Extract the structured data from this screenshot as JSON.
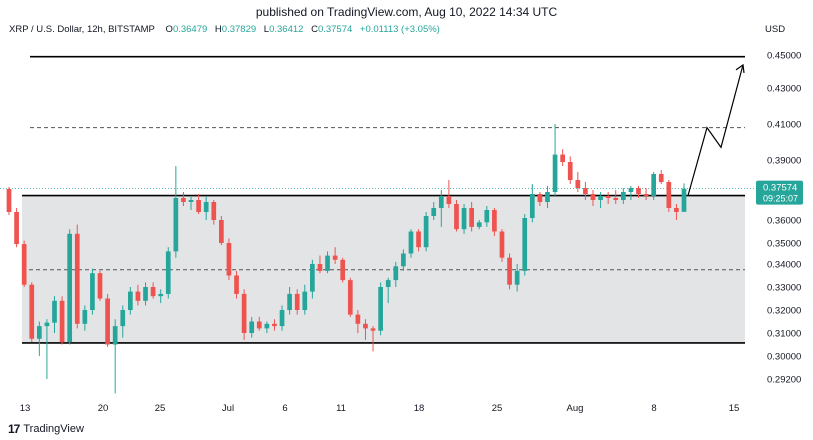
{
  "header": {
    "published": "published on TradingView.com, Aug 10, 2022 14:34 UTC"
  },
  "symbol": {
    "name": "XRP / U.S. Dollar, 12h, BITSTAMP",
    "open_label": "O",
    "open": "0.36479",
    "high_label": "H",
    "high": "0.37829",
    "low_label": "L",
    "low": "0.36412",
    "close_label": "C",
    "close": "0.37574",
    "change": "+0.01113 (+3.05%)"
  },
  "currency": "USD",
  "footer": {
    "brand": "TradingView",
    "logo_icon": "tradingview-logo-icon"
  },
  "colors": {
    "up": "#26a69a",
    "down": "#ef5350",
    "range_fill": "#e3e4e6",
    "price_tag": "#26a69a"
  },
  "chart_data": {
    "type": "candlestick",
    "y_ticks": [
      "0.45000",
      "0.43000",
      "0.41000",
      "0.39000",
      "0.36000",
      "0.35000",
      "0.34000",
      "0.33000",
      "0.32000",
      "0.31000",
      "0.30000",
      "0.29200"
    ],
    "x_ticks": [
      "13",
      "20",
      "25",
      "Jul",
      "6",
      "11",
      "18",
      "25",
      "Aug",
      "8",
      "15"
    ],
    "price_tag": {
      "price": "0.37574",
      "countdown": "09:25:07"
    },
    "candles": [
      [
        0.3755,
        0.3765,
        0.3625,
        0.364
      ],
      [
        0.364,
        0.366,
        0.348,
        0.3495
      ],
      [
        0.3495,
        0.351,
        0.33,
        0.331
      ],
      [
        0.331,
        0.332,
        0.306,
        0.3075
      ],
      [
        0.3075,
        0.315,
        0.3,
        0.313
      ],
      [
        0.313,
        0.316,
        0.292,
        0.3145
      ],
      [
        0.3145,
        0.326,
        0.31,
        0.324
      ],
      [
        0.324,
        0.326,
        0.305,
        0.306
      ],
      [
        0.306,
        0.356,
        0.305,
        0.354
      ],
      [
        0.354,
        0.358,
        0.312,
        0.314
      ],
      [
        0.314,
        0.322,
        0.311,
        0.32
      ],
      [
        0.32,
        0.338,
        0.318,
        0.336
      ],
      [
        0.336,
        0.337,
        0.324,
        0.325
      ],
      [
        0.325,
        0.327,
        0.304,
        0.305
      ],
      [
        0.305,
        0.316,
        0.287,
        0.313
      ],
      [
        0.313,
        0.322,
        0.308,
        0.32
      ],
      [
        0.32,
        0.33,
        0.318,
        0.328
      ],
      [
        0.328,
        0.331,
        0.322,
        0.324
      ],
      [
        0.324,
        0.332,
        0.322,
        0.33
      ],
      [
        0.33,
        0.332,
        0.325,
        0.326
      ],
      [
        0.326,
        0.329,
        0.323,
        0.327
      ],
      [
        0.327,
        0.348,
        0.325,
        0.346
      ],
      [
        0.346,
        0.387,
        0.343,
        0.371
      ],
      [
        0.371,
        0.374,
        0.367,
        0.369
      ],
      [
        0.369,
        0.372,
        0.365,
        0.37
      ],
      [
        0.37,
        0.373,
        0.363,
        0.364
      ],
      [
        0.364,
        0.372,
        0.36,
        0.369
      ],
      [
        0.369,
        0.37,
        0.358,
        0.36
      ],
      [
        0.36,
        0.362,
        0.349,
        0.35
      ],
      [
        0.35,
        0.352,
        0.333,
        0.335
      ],
      [
        0.335,
        0.337,
        0.325,
        0.327
      ],
      [
        0.327,
        0.329,
        0.307,
        0.31
      ],
      [
        0.31,
        0.317,
        0.308,
        0.315
      ],
      [
        0.315,
        0.317,
        0.311,
        0.312
      ],
      [
        0.312,
        0.315,
        0.31,
        0.314
      ],
      [
        0.314,
        0.316,
        0.311,
        0.313
      ],
      [
        0.313,
        0.322,
        0.311,
        0.32
      ],
      [
        0.32,
        0.33,
        0.318,
        0.327
      ],
      [
        0.327,
        0.329,
        0.318,
        0.32
      ],
      [
        0.32,
        0.331,
        0.318,
        0.328
      ],
      [
        0.328,
        0.342,
        0.325,
        0.34
      ],
      [
        0.34,
        0.344,
        0.336,
        0.337
      ],
      [
        0.337,
        0.346,
        0.336,
        0.344
      ],
      [
        0.344,
        0.348,
        0.34,
        0.342
      ],
      [
        0.342,
        0.343,
        0.332,
        0.333
      ],
      [
        0.333,
        0.334,
        0.317,
        0.318
      ],
      [
        0.318,
        0.32,
        0.31,
        0.314
      ],
      [
        0.314,
        0.316,
        0.307,
        0.312
      ],
      [
        0.312,
        0.313,
        0.302,
        0.311
      ],
      [
        0.311,
        0.332,
        0.309,
        0.33
      ],
      [
        0.33,
        0.334,
        0.323,
        0.333
      ],
      [
        0.333,
        0.341,
        0.33,
        0.339
      ],
      [
        0.339,
        0.347,
        0.337,
        0.345
      ],
      [
        0.345,
        0.356,
        0.343,
        0.355
      ],
      [
        0.355,
        0.356,
        0.346,
        0.348
      ],
      [
        0.348,
        0.364,
        0.346,
        0.362
      ],
      [
        0.362,
        0.369,
        0.36,
        0.366
      ],
      [
        0.366,
        0.375,
        0.357,
        0.372
      ],
      [
        0.372,
        0.38,
        0.366,
        0.368
      ],
      [
        0.368,
        0.37,
        0.355,
        0.356
      ],
      [
        0.356,
        0.368,
        0.354,
        0.366
      ],
      [
        0.366,
        0.369,
        0.355,
        0.357
      ],
      [
        0.357,
        0.36,
        0.356,
        0.359
      ],
      [
        0.359,
        0.367,
        0.357,
        0.365
      ],
      [
        0.365,
        0.366,
        0.353,
        0.355
      ],
      [
        0.355,
        0.356,
        0.341,
        0.343
      ],
      [
        0.343,
        0.345,
        0.329,
        0.331
      ],
      [
        0.331,
        0.34,
        0.328,
        0.337
      ],
      [
        0.337,
        0.363,
        0.335,
        0.361
      ],
      [
        0.361,
        0.378,
        0.359,
        0.373
      ],
      [
        0.373,
        0.374,
        0.367,
        0.369
      ],
      [
        0.369,
        0.377,
        0.366,
        0.374
      ],
      [
        0.374,
        0.41,
        0.372,
        0.393
      ],
      [
        0.393,
        0.396,
        0.387,
        0.389
      ],
      [
        0.389,
        0.392,
        0.378,
        0.38
      ],
      [
        0.38,
        0.384,
        0.374,
        0.376
      ],
      [
        0.376,
        0.379,
        0.37,
        0.373
      ],
      [
        0.373,
        0.375,
        0.367,
        0.37
      ],
      [
        0.37,
        0.374,
        0.366,
        0.372
      ],
      [
        0.372,
        0.374,
        0.368,
        0.371
      ],
      [
        0.371,
        0.375,
        0.368,
        0.37
      ],
      [
        0.37,
        0.376,
        0.368,
        0.374
      ],
      [
        0.374,
        0.377,
        0.37,
        0.376
      ],
      [
        0.376,
        0.377,
        0.371,
        0.373
      ],
      [
        0.373,
        0.376,
        0.37,
        0.372
      ],
      [
        0.372,
        0.384,
        0.37,
        0.383
      ],
      [
        0.383,
        0.385,
        0.378,
        0.379
      ],
      [
        0.379,
        0.38,
        0.364,
        0.366
      ],
      [
        0.366,
        0.368,
        0.36,
        0.364
      ],
      [
        0.3641,
        0.3783,
        0.3641,
        0.3757
      ]
    ],
    "range_high": 0.3722,
    "range_low": 0.3057,
    "range_mid": 0.3375,
    "target_upper": 0.449,
    "target_dashed": 0.408,
    "projection": [
      [
        0.3722
      ],
      [
        0.408
      ],
      [
        0.397
      ],
      [
        0.444
      ]
    ]
  }
}
